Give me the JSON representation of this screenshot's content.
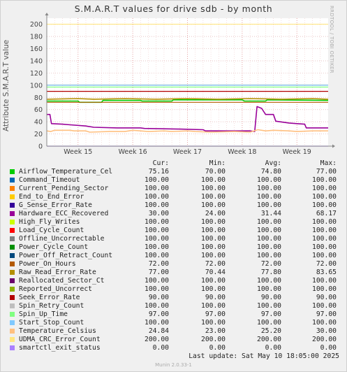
{
  "chart_data": {
    "type": "line",
    "title": "S.M.A.R.T values for drive sdb - by month",
    "ylabel": "Attribute S.M.A.R.T value",
    "ylim": [
      0,
      210
    ],
    "yticks": [
      0,
      20,
      40,
      60,
      80,
      100,
      120,
      140,
      160,
      180,
      200
    ],
    "x_ticks": [
      "Week 15",
      "Week 16",
      "Week 17",
      "Week 18",
      "Week 19"
    ],
    "x_tick_positions_days": [
      4,
      11,
      18,
      25,
      32
    ],
    "xlim_days": [
      0,
      36
    ],
    "grid": true,
    "legend_columns": [
      "Cur:",
      "Min:",
      "Avg:",
      "Max:"
    ],
    "series": [
      {
        "name": "Airflow_Temperature_Cel",
        "color": "#00cc00",
        "cur": "75.16",
        "min": "70.00",
        "avg": "74.80",
        "max": "77.00",
        "points": [
          [
            0,
            74
          ],
          [
            4,
            74
          ],
          [
            4.2,
            72
          ],
          [
            7,
            72
          ],
          [
            7.2,
            75
          ],
          [
            12,
            75
          ],
          [
            12.2,
            74
          ],
          [
            16,
            74
          ],
          [
            16.2,
            76
          ],
          [
            25,
            76
          ],
          [
            25.3,
            74
          ],
          [
            28,
            74
          ],
          [
            28.2,
            76
          ],
          [
            36,
            75
          ]
        ]
      },
      {
        "name": "Command_Timeout",
        "color": "#0066b3",
        "cur": "100.00",
        "min": "100.00",
        "avg": "100.00",
        "max": "100.00",
        "points": [
          [
            0,
            100
          ],
          [
            36,
            100
          ]
        ]
      },
      {
        "name": "Current_Pending_Sector",
        "color": "#ff8000",
        "cur": "100.00",
        "min": "100.00",
        "avg": "100.00",
        "max": "100.00",
        "points": [
          [
            0,
            100
          ],
          [
            36,
            100
          ]
        ]
      },
      {
        "name": "End_to_End_Error",
        "color": "#ffcc00",
        "cur": "100.00",
        "min": "100.00",
        "avg": "100.00",
        "max": "100.00",
        "points": [
          [
            0,
            100
          ],
          [
            36,
            100
          ]
        ]
      },
      {
        "name": "G_Sense_Error_Rate",
        "color": "#330099",
        "cur": "100.00",
        "min": "100.00",
        "avg": "100.00",
        "max": "100.00",
        "points": [
          [
            0,
            100
          ],
          [
            36,
            100
          ]
        ]
      },
      {
        "name": "Hardware_ECC_Recovered",
        "color": "#990099",
        "cur": "30.00",
        "min": "24.00",
        "avg": "31.44",
        "max": "68.17",
        "points": [
          [
            0,
            52
          ],
          [
            0.4,
            52
          ],
          [
            0.6,
            37
          ],
          [
            2,
            36
          ],
          [
            3,
            35
          ],
          [
            5,
            33
          ],
          [
            6,
            31
          ],
          [
            9,
            30
          ],
          [
            12,
            30
          ],
          [
            12.5,
            29
          ],
          [
            17,
            28
          ],
          [
            20,
            27
          ],
          [
            20.3,
            25
          ],
          [
            26,
            25
          ],
          [
            26.6,
            24
          ],
          [
            26.9,
            65
          ],
          [
            27.5,
            62
          ],
          [
            28,
            52
          ],
          [
            29,
            52
          ],
          [
            29.3,
            41
          ],
          [
            31,
            38
          ],
          [
            32,
            37
          ],
          [
            33,
            36
          ],
          [
            33.2,
            30
          ],
          [
            36,
            30
          ]
        ]
      },
      {
        "name": "High_Fly_Writes",
        "color": "#ccff00",
        "cur": "100.00",
        "min": "100.00",
        "avg": "100.00",
        "max": "100.00",
        "points": [
          [
            0,
            100
          ],
          [
            36,
            100
          ]
        ]
      },
      {
        "name": "Load_Cycle_Count",
        "color": "#ff0000",
        "cur": "100.00",
        "min": "100.00",
        "avg": "100.00",
        "max": "100.00",
        "points": [
          [
            0,
            100
          ],
          [
            36,
            100
          ]
        ]
      },
      {
        "name": "Offline_Uncorrectable",
        "color": "#808080",
        "cur": "100.00",
        "min": "100.00",
        "avg": "100.00",
        "max": "100.00",
        "points": [
          [
            0,
            100
          ],
          [
            36,
            100
          ]
        ]
      },
      {
        "name": "Power_Cycle_Count",
        "color": "#008f00",
        "cur": "100.00",
        "min": "100.00",
        "avg": "100.00",
        "max": "100.00",
        "points": [
          [
            0,
            100
          ],
          [
            36,
            100
          ]
        ]
      },
      {
        "name": "Power_Off_Retract_Count",
        "color": "#00487d",
        "cur": "100.00",
        "min": "100.00",
        "avg": "100.00",
        "max": "100.00",
        "points": [
          [
            0,
            100
          ],
          [
            36,
            100
          ]
        ]
      },
      {
        "name": "Power_On_Hours",
        "color": "#b35a00",
        "cur": "72.00",
        "min": "72.00",
        "avg": "72.00",
        "max": "72.00",
        "points": [
          [
            0,
            72
          ],
          [
            36,
            72
          ]
        ]
      },
      {
        "name": "Raw_Read_Error_Rate",
        "color": "#b38f00",
        "cur": "77.00",
        "min": "70.44",
        "avg": "77.80",
        "max": "83.65",
        "points": [
          [
            0,
            77
          ],
          [
            4,
            78
          ],
          [
            6,
            77
          ],
          [
            10,
            78
          ],
          [
            14,
            77
          ],
          [
            18,
            78
          ],
          [
            22,
            77
          ],
          [
            26,
            78
          ],
          [
            30,
            77
          ],
          [
            34,
            78
          ],
          [
            36,
            77
          ]
        ]
      },
      {
        "name": "Reallocated_Sector_Ct",
        "color": "#6b006b",
        "cur": "100.00",
        "min": "100.00",
        "avg": "100.00",
        "max": "100.00",
        "points": [
          [
            0,
            100
          ],
          [
            36,
            100
          ]
        ]
      },
      {
        "name": "Reported_Uncorrect",
        "color": "#8fb300",
        "cur": "100.00",
        "min": "100.00",
        "avg": "100.00",
        "max": "100.00",
        "points": [
          [
            0,
            100
          ],
          [
            36,
            100
          ]
        ]
      },
      {
        "name": "Seek_Error_Rate",
        "color": "#b30000",
        "cur": "90.00",
        "min": "90.00",
        "avg": "90.00",
        "max": "90.00",
        "points": [
          [
            0,
            90
          ],
          [
            36,
            90
          ]
        ]
      },
      {
        "name": "Spin_Retry_Count",
        "color": "#bebebe",
        "cur": "100.00",
        "min": "100.00",
        "avg": "100.00",
        "max": "100.00",
        "points": [
          [
            0,
            100
          ],
          [
            36,
            100
          ]
        ]
      },
      {
        "name": "Spin_Up_Time",
        "color": "#80ff80",
        "cur": "97.00",
        "min": "97.00",
        "avg": "97.00",
        "max": "97.00",
        "points": [
          [
            0,
            97
          ],
          [
            36,
            97
          ]
        ]
      },
      {
        "name": "Start_Stop_Count",
        "color": "#80c9ff",
        "cur": "100.00",
        "min": "100.00",
        "avg": "100.00",
        "max": "100.00",
        "points": [
          [
            0,
            100
          ],
          [
            36,
            100
          ]
        ]
      },
      {
        "name": "Temperature_Celsius",
        "color": "#ffc080",
        "cur": "24.84",
        "min": "23.00",
        "avg": "25.20",
        "max": "30.00",
        "points": [
          [
            0,
            25
          ],
          [
            0.5,
            24
          ],
          [
            1,
            26
          ],
          [
            3,
            26
          ],
          [
            3.5,
            25
          ],
          [
            5,
            25
          ],
          [
            5.5,
            23
          ],
          [
            8,
            24
          ],
          [
            10,
            24
          ],
          [
            11,
            26
          ],
          [
            13,
            24
          ],
          [
            15,
            25
          ],
          [
            16,
            24
          ],
          [
            18,
            25
          ],
          [
            19,
            24
          ],
          [
            21,
            23
          ],
          [
            24,
            24
          ],
          [
            26,
            23
          ],
          [
            27,
            27
          ],
          [
            28,
            25
          ],
          [
            29,
            26
          ],
          [
            31,
            25
          ],
          [
            32,
            24
          ],
          [
            34,
            25
          ],
          [
            36,
            25
          ]
        ]
      },
      {
        "name": "UDMA_CRC_Error_Count",
        "color": "#ffe680",
        "cur": "200.00",
        "min": "200.00",
        "avg": "200.00",
        "max": "200.00",
        "points": [
          [
            0,
            200
          ],
          [
            36,
            200
          ]
        ]
      },
      {
        "name": "smartctl_exit_status",
        "color": "#aa80ff",
        "cur": "0.00",
        "min": "0.00",
        "avg": "0.00",
        "max": "0.00",
        "points": [
          [
            0,
            0
          ],
          [
            36,
            0
          ]
        ]
      }
    ]
  },
  "side_label": "RRDTOOL / TOBI OETIKER",
  "footer": "Last update:  Sat May 10 18:05:00 2025",
  "munin_version": "Munin 2.0.33-1"
}
